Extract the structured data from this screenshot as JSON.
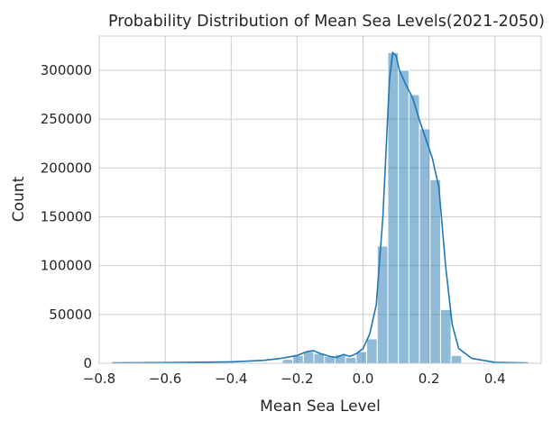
{
  "chart_data": {
    "type": "bar",
    "subtype": "histogram-with-kde",
    "title": "Probability Distribution of Mean Sea Levels(2021-2050)",
    "xlabel": "Mean Sea Level",
    "ylabel": "Count",
    "xlim": [
      -0.8,
      0.54
    ],
    "ylim": [
      0,
      335000
    ],
    "xticks": [
      -0.8,
      -0.6,
      -0.4,
      -0.2,
      0.0,
      0.2,
      0.4
    ],
    "xtick_labels": [
      "−0.8",
      "−0.6",
      "−0.4",
      "−0.2",
      "0.0",
      "0.2",
      "0.4"
    ],
    "yticks": [
      0,
      50000,
      100000,
      150000,
      200000,
      250000,
      300000
    ],
    "ytick_labels": [
      "0",
      "50000",
      "100000",
      "150000",
      "200000",
      "250000",
      "300000"
    ],
    "grid": true,
    "bins": [
      {
        "x0": -0.245,
        "x1": -0.213,
        "count": 4000
      },
      {
        "x0": -0.213,
        "x1": -0.181,
        "count": 8000
      },
      {
        "x0": -0.181,
        "x1": -0.149,
        "count": 12000
      },
      {
        "x0": -0.149,
        "x1": -0.117,
        "count": 10000
      },
      {
        "x0": -0.117,
        "x1": -0.085,
        "count": 7000
      },
      {
        "x0": -0.085,
        "x1": -0.053,
        "count": 9000
      },
      {
        "x0": -0.053,
        "x1": -0.021,
        "count": 6000
      },
      {
        "x0": -0.021,
        "x1": 0.011,
        "count": 12000
      },
      {
        "x0": 0.011,
        "x1": 0.043,
        "count": 25000
      },
      {
        "x0": 0.043,
        "x1": 0.075,
        "count": 120000
      },
      {
        "x0": 0.075,
        "x1": 0.107,
        "count": 318000
      },
      {
        "x0": 0.107,
        "x1": 0.139,
        "count": 300000
      },
      {
        "x0": 0.139,
        "x1": 0.171,
        "count": 275000
      },
      {
        "x0": 0.171,
        "x1": 0.203,
        "count": 240000
      },
      {
        "x0": 0.203,
        "x1": 0.235,
        "count": 188000
      },
      {
        "x0": 0.235,
        "x1": 0.267,
        "count": 55000
      },
      {
        "x0": 0.267,
        "x1": 0.299,
        "count": 8000
      }
    ],
    "kde": [
      {
        "x": -0.76,
        "y": 500
      },
      {
        "x": -0.6,
        "y": 700
      },
      {
        "x": -0.4,
        "y": 1500
      },
      {
        "x": -0.3,
        "y": 3000
      },
      {
        "x": -0.25,
        "y": 5000
      },
      {
        "x": -0.2,
        "y": 8000
      },
      {
        "x": -0.17,
        "y": 12000
      },
      {
        "x": -0.15,
        "y": 13000
      },
      {
        "x": -0.13,
        "y": 10000
      },
      {
        "x": -0.1,
        "y": 7000
      },
      {
        "x": -0.08,
        "y": 6000
      },
      {
        "x": -0.06,
        "y": 9000
      },
      {
        "x": -0.04,
        "y": 7000
      },
      {
        "x": -0.02,
        "y": 10000
      },
      {
        "x": 0.0,
        "y": 15000
      },
      {
        "x": 0.02,
        "y": 30000
      },
      {
        "x": 0.04,
        "y": 60000
      },
      {
        "x": 0.06,
        "y": 150000
      },
      {
        "x": 0.08,
        "y": 290000
      },
      {
        "x": 0.09,
        "y": 318000
      },
      {
        "x": 0.1,
        "y": 315000
      },
      {
        "x": 0.11,
        "y": 300000
      },
      {
        "x": 0.13,
        "y": 285000
      },
      {
        "x": 0.15,
        "y": 272000
      },
      {
        "x": 0.17,
        "y": 250000
      },
      {
        "x": 0.19,
        "y": 230000
      },
      {
        "x": 0.21,
        "y": 210000
      },
      {
        "x": 0.23,
        "y": 180000
      },
      {
        "x": 0.25,
        "y": 100000
      },
      {
        "x": 0.27,
        "y": 40000
      },
      {
        "x": 0.29,
        "y": 15000
      },
      {
        "x": 0.33,
        "y": 5000
      },
      {
        "x": 0.4,
        "y": 1000
      },
      {
        "x": 0.5,
        "y": 300
      }
    ],
    "bar_color": "#1f77b4",
    "kde_color": "#1f77b4",
    "grid_color": "#cccccc"
  }
}
